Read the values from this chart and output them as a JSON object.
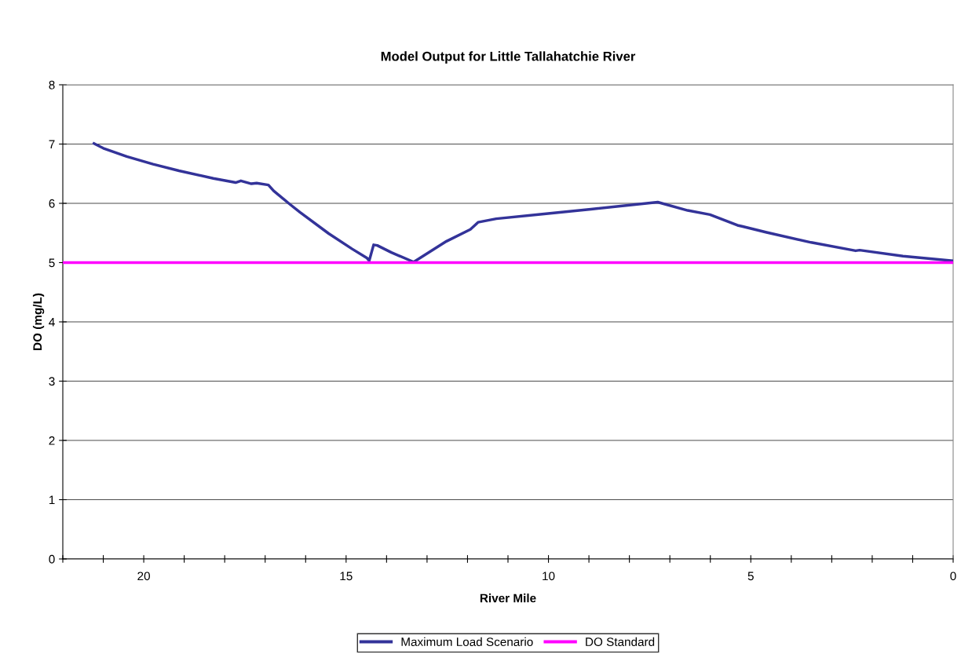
{
  "chart_data": {
    "type": "line",
    "title": "Model Output for Little Tallahatchie River",
    "xlabel": "River Mile",
    "ylabel": "DO (mg/L)",
    "series": [
      {
        "name": "Maximum Load Scenario",
        "color": "#333399",
        "x": [
          21.23,
          21.0,
          20.42,
          19.77,
          19.13,
          18.28,
          17.73,
          17.6,
          17.34,
          17.21,
          16.92,
          16.79,
          16.4,
          16.14,
          15.43,
          14.85,
          14.49,
          14.43,
          14.32,
          14.23,
          13.88,
          13.33,
          12.52,
          11.93,
          11.74,
          11.29,
          10.25,
          8.95,
          7.3,
          6.56,
          6.01,
          5.33,
          5.2,
          4.61,
          3.51,
          2.41,
          2.31,
          1.24,
          0.01
        ],
        "values": [
          7.01,
          6.93,
          6.79,
          6.66,
          6.55,
          6.42,
          6.35,
          6.38,
          6.33,
          6.34,
          6.31,
          6.21,
          5.99,
          5.85,
          5.49,
          5.23,
          5.08,
          5.03,
          5.3,
          5.29,
          5.17,
          5.01,
          5.36,
          5.56,
          5.68,
          5.74,
          5.81,
          5.9,
          6.02,
          5.88,
          5.81,
          5.63,
          5.61,
          5.51,
          5.34,
          5.2,
          5.21,
          5.11,
          5.03
        ]
      },
      {
        "name": "DO Standard",
        "color": "#ff00ff",
        "x": [
          22,
          0
        ],
        "values": [
          5,
          5
        ]
      }
    ],
    "xlim": [
      22,
      0
    ],
    "xticks": [
      {
        "value": 22,
        "label": null
      },
      {
        "value": 21,
        "label": null
      },
      20,
      {
        "value": 19,
        "label": null
      },
      {
        "value": 18,
        "label": null
      },
      {
        "value": 17,
        "label": null
      },
      {
        "value": 16,
        "label": null
      },
      15,
      {
        "value": 14,
        "label": null
      },
      {
        "value": 13,
        "label": null
      },
      {
        "value": 12,
        "label": null
      },
      {
        "value": 11,
        "label": null
      },
      10,
      {
        "value": 9,
        "label": null
      },
      {
        "value": 8,
        "label": null
      },
      {
        "value": 7,
        "label": null
      },
      {
        "value": 6,
        "label": null
      },
      5,
      {
        "value": 4,
        "label": null
      },
      {
        "value": 3,
        "label": null
      },
      {
        "value": 2,
        "label": null
      },
      {
        "value": 1,
        "label": null
      },
      0
    ],
    "ylim": [
      0,
      8
    ],
    "yticks": [
      0,
      1,
      2,
      3,
      4,
      5,
      6,
      7,
      8
    ],
    "grid": "y",
    "legend": "bottom",
    "marker": "none",
    "line_style": "solid"
  }
}
